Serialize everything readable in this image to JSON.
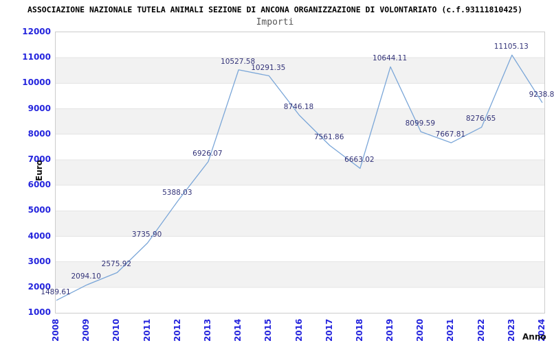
{
  "chart_data": {
    "type": "line",
    "title": "ASSOCIAZIONE NAZIONALE TUTELA ANIMALI SEZIONE DI ANCONA ORGANIZZAZIONE DI VOLONTARIATO (c.f.93111810425)",
    "subtitle": "Importi",
    "xlabel": "Anno",
    "ylabel": "Euro",
    "categories": [
      "2008",
      "2009",
      "2010",
      "2011",
      "2012",
      "2013",
      "2014",
      "2015",
      "2016",
      "2017",
      "2018",
      "2019",
      "2020",
      "2021",
      "2022",
      "2023",
      "2024"
    ],
    "values": [
      1489.61,
      2094.1,
      2575.92,
      3735.9,
      5388.03,
      6926.07,
      10527.58,
      10291.35,
      8746.18,
      7561.86,
      6663.02,
      10644.11,
      8099.59,
      7667.81,
      8276.65,
      11105.13,
      9238.8
    ],
    "point_labels": [
      "1489.61",
      "2094.10",
      "2575.92",
      "3735.90",
      "5388.03",
      "6926.07",
      "10527.58",
      "10291.35",
      "8746.18",
      "7561.86",
      "6663.02",
      "10644.11",
      "8099.59",
      "7667.81",
      "8276.65",
      "11105.13",
      "9238.8"
    ],
    "ylim": [
      1000,
      12000
    ],
    "ytick_step": 1000,
    "grid": "horizontal-bands-alternating",
    "legend": "none",
    "colors": {
      "line": "#7aa6d8",
      "point_label": "#323278",
      "tick_label": "#2525dd",
      "band_alt": "#f2f2f2",
      "band_main": "#ffffff",
      "grid_line": "#e4e4e4",
      "plot_border": "#cccccc",
      "title": "#000000",
      "subtitle": "#555555",
      "axis_title": "#111111"
    }
  }
}
